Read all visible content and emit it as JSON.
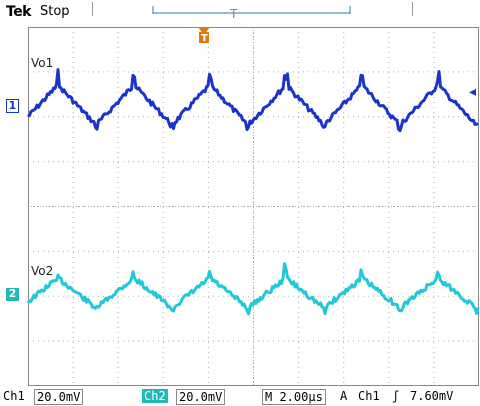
{
  "header": {
    "brand": "Tek",
    "state": "Stop"
  },
  "channels": [
    {
      "id": "1",
      "label": "Vo1",
      "color": "#1a34c9"
    },
    {
      "id": "2",
      "label": "Vo2",
      "color": "#20c8d8"
    }
  ],
  "statusbar": {
    "ch1_name": "Ch1",
    "ch1_scale": "20.0mV",
    "ch2_name": "Ch2",
    "ch2_scale": "20.0mV",
    "timebase": "M 2.00µs",
    "trigger_mode": "A",
    "trigger_source": "Ch1",
    "trigger_slope_icon": "rising-edge-icon",
    "trigger_level": "7.60mV"
  },
  "colors": {
    "ch1": "#1a34c9",
    "ch2": "#20c8d8",
    "trigger": "#e07a10",
    "grid": "#b0b0b0"
  }
}
